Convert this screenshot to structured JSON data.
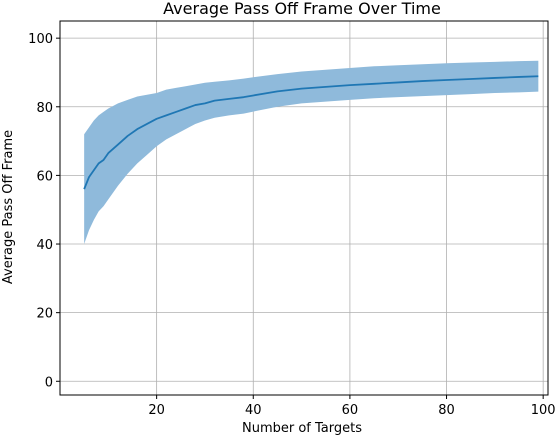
{
  "chart_data": {
    "type": "area",
    "title": "Average Pass Off Frame Over Time",
    "xlabel": "Number of Targets",
    "ylabel": "Average Pass Off Frame",
    "xlim": [
      0,
      101
    ],
    "ylim": [
      -4,
      105
    ],
    "xticks": [
      20,
      40,
      60,
      80,
      100
    ],
    "yticks": [
      0,
      20,
      40,
      60,
      80,
      100
    ],
    "grid": true,
    "colors": {
      "line": "#1f77b4",
      "band": "#8fbadb",
      "grid": "#b0b0b0",
      "axis": "#000000"
    },
    "series": [
      {
        "x": [
          5,
          6,
          7,
          8,
          9,
          10,
          12,
          14,
          16,
          18,
          20,
          22,
          24,
          26,
          28,
          30,
          32,
          35,
          38,
          40,
          45,
          50,
          55,
          60,
          65,
          70,
          75,
          80,
          85,
          90,
          95,
          99
        ],
        "mean": [
          56,
          59.5,
          61.5,
          63.5,
          64.5,
          66.5,
          69,
          71.5,
          73.5,
          75,
          76.5,
          77.5,
          78.5,
          79.5,
          80.5,
          81,
          81.8,
          82.3,
          82.8,
          83.3,
          84.5,
          85.3,
          85.8,
          86.3,
          86.7,
          87.1,
          87.5,
          87.8,
          88.1,
          88.4,
          88.7,
          88.9
        ],
        "upper": [
          72,
          74,
          76,
          77.5,
          78.5,
          79.5,
          81,
          82,
          83,
          83.5,
          84,
          85,
          85.5,
          86,
          86.5,
          87,
          87.3,
          87.7,
          88.2,
          88.6,
          89.5,
          90.3,
          90.8,
          91.3,
          91.8,
          92.1,
          92.4,
          92.7,
          92.9,
          93.1,
          93.3,
          93.4
        ],
        "lower": [
          40,
          44,
          47,
          49.5,
          51,
          53,
          57,
          60.5,
          63.5,
          66,
          68.5,
          70.5,
          72,
          73.5,
          75,
          76,
          76.8,
          77.5,
          78,
          78.6,
          80,
          81,
          81.5,
          82,
          82.5,
          82.8,
          83.1,
          83.4,
          83.7,
          84,
          84.2,
          84.4
        ]
      }
    ]
  }
}
